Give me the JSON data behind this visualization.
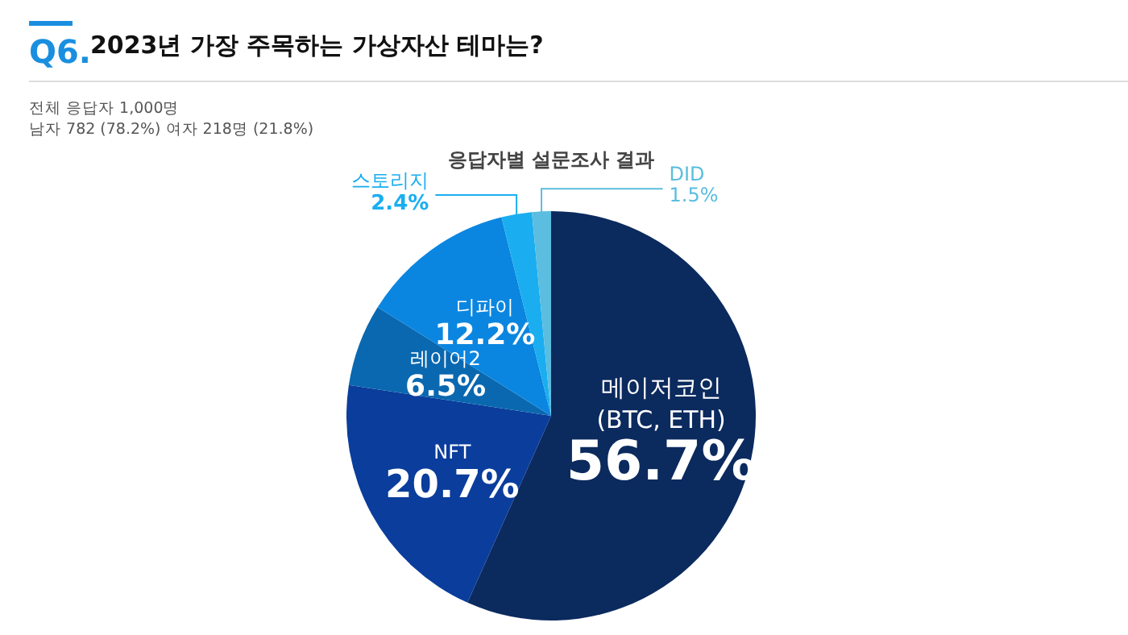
{
  "chart_data": {
    "type": "pie",
    "title": "2023년 가장 주목하는 가상자산 테마는?",
    "subtitle": "응답자별 설문조사 결과",
    "annotations": [
      "Q6.",
      "전체 응답자 1,000명",
      "남자 782 (78.2%) 여자 218명 (21.8%)"
    ],
    "categories": [
      "메이저코인 (BTC, ETH)",
      "NFT",
      "레이어2",
      "디파이",
      "스토리지",
      "DID"
    ],
    "values": [
      56.7,
      20.7,
      6.5,
      12.2,
      2.4,
      1.5
    ],
    "value_labels": [
      "56.7%",
      "20.7%",
      "6.5%",
      "12.2%",
      "2.4%",
      "1.5%"
    ],
    "colors": [
      "#0b2a5e",
      "#0a3d9c",
      "#0a68b0",
      "#0b86e0",
      "#1aaef0",
      "#5bbde0"
    ]
  }
}
